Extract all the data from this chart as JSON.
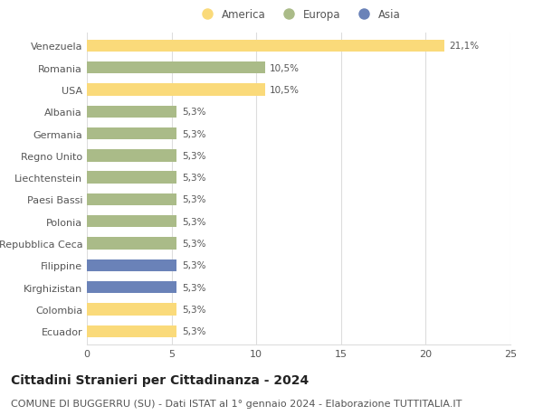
{
  "countries": [
    "Venezuela",
    "Romania",
    "USA",
    "Albania",
    "Germania",
    "Regno Unito",
    "Liechtenstein",
    "Paesi Bassi",
    "Polonia",
    "Repubblica Ceca",
    "Filippine",
    "Kirghizistan",
    "Colombia",
    "Ecuador"
  ],
  "values": [
    21.1,
    10.5,
    10.5,
    5.3,
    5.3,
    5.3,
    5.3,
    5.3,
    5.3,
    5.3,
    5.3,
    5.3,
    5.3,
    5.3
  ],
  "labels": [
    "21,1%",
    "10,5%",
    "10,5%",
    "5,3%",
    "5,3%",
    "5,3%",
    "5,3%",
    "5,3%",
    "5,3%",
    "5,3%",
    "5,3%",
    "5,3%",
    "5,3%",
    "5,3%"
  ],
  "colors": [
    "#FADA7A",
    "#AABB88",
    "#FADA7A",
    "#AABB88",
    "#AABB88",
    "#AABB88",
    "#AABB88",
    "#AABB88",
    "#AABB88",
    "#AABB88",
    "#6A82B8",
    "#6A82B8",
    "#FADA7A",
    "#FADA7A"
  ],
  "legend_labels": [
    "America",
    "Europa",
    "Asia"
  ],
  "legend_colors": [
    "#FADA7A",
    "#AABB88",
    "#6A82B8"
  ],
  "title": "Cittadini Stranieri per Cittadinanza - 2024",
  "subtitle": "COMUNE DI BUGGERRU (SU) - Dati ISTAT al 1° gennaio 2024 - Elaborazione TUTTITALIA.IT",
  "xlim": [
    0,
    25
  ],
  "xticks": [
    0,
    5,
    10,
    15,
    20,
    25
  ],
  "background_color": "#ffffff",
  "grid_color": "#dddddd",
  "title_fontsize": 10,
  "subtitle_fontsize": 8,
  "label_fontsize": 7.5,
  "tick_fontsize": 8,
  "legend_fontsize": 8.5,
  "bar_height": 0.55
}
